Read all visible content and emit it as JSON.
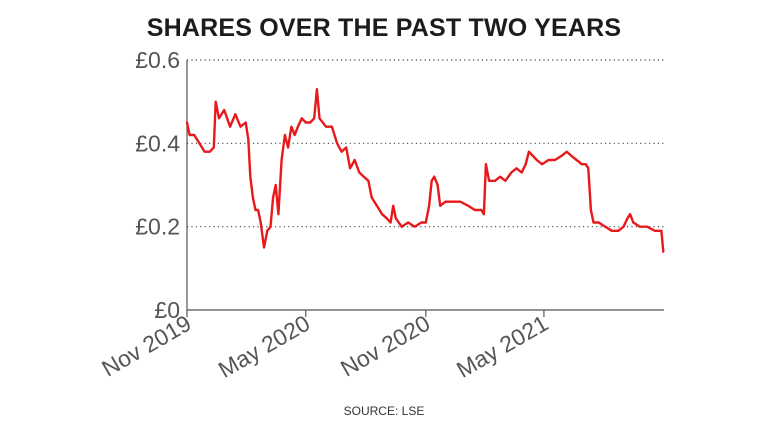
{
  "chart_data": {
    "type": "line",
    "title": "SHARES OVER THE PAST TWO YEARS",
    "source": "SOURCE: LSE",
    "currency_prefix": "£",
    "xlabel": "",
    "ylabel": "",
    "ylim": [
      0,
      0.6
    ],
    "yticks": [
      {
        "value": 0.6,
        "label": "£0.6"
      },
      {
        "value": 0.4,
        "label": "£0.4"
      },
      {
        "value": 0.2,
        "label": "£0.2"
      },
      {
        "value": 0,
        "label": "£0"
      }
    ],
    "xlim": [
      "2019-11-01",
      "2021-11-01"
    ],
    "xticks": [
      {
        "date": "2019-11-01",
        "label": "Nov 2019"
      },
      {
        "date": "2020-05-01",
        "label": "May 2020"
      },
      {
        "date": "2020-11-01",
        "label": "Nov 2020"
      },
      {
        "date": "2021-05-01",
        "label": "May 2021"
      }
    ],
    "grid": {
      "horizontal": true,
      "style": "dotted"
    },
    "line_color": "#e8191b",
    "series": [
      {
        "name": "",
        "points": [
          [
            "2019-11-01",
            0.45
          ],
          [
            "2019-11-05",
            0.42
          ],
          [
            "2019-11-12",
            0.42
          ],
          [
            "2019-11-20",
            0.4
          ],
          [
            "2019-11-28",
            0.38
          ],
          [
            "2019-12-06",
            0.38
          ],
          [
            "2019-12-12",
            0.39
          ],
          [
            "2019-12-15",
            0.5
          ],
          [
            "2019-12-20",
            0.46
          ],
          [
            "2019-12-28",
            0.48
          ],
          [
            "2020-01-06",
            0.44
          ],
          [
            "2020-01-14",
            0.47
          ],
          [
            "2020-01-22",
            0.44
          ],
          [
            "2020-01-30",
            0.45
          ],
          [
            "2020-02-03",
            0.41
          ],
          [
            "2020-02-06",
            0.32
          ],
          [
            "2020-02-10",
            0.27
          ],
          [
            "2020-02-14",
            0.24
          ],
          [
            "2020-02-18",
            0.24
          ],
          [
            "2020-02-22",
            0.21
          ],
          [
            "2020-02-27",
            0.15
          ],
          [
            "2020-03-03",
            0.19
          ],
          [
            "2020-03-08",
            0.2
          ],
          [
            "2020-03-12",
            0.27
          ],
          [
            "2020-03-16",
            0.3
          ],
          [
            "2020-03-20",
            0.23
          ],
          [
            "2020-03-25",
            0.36
          ],
          [
            "2020-03-30",
            0.42
          ],
          [
            "2020-04-04",
            0.39
          ],
          [
            "2020-04-09",
            0.44
          ],
          [
            "2020-04-14",
            0.42
          ],
          [
            "2020-04-19",
            0.44
          ],
          [
            "2020-04-25",
            0.46
          ],
          [
            "2020-05-01",
            0.45
          ],
          [
            "2020-05-08",
            0.45
          ],
          [
            "2020-05-14",
            0.46
          ],
          [
            "2020-05-18",
            0.53
          ],
          [
            "2020-05-22",
            0.46
          ],
          [
            "2020-06-01",
            0.44
          ],
          [
            "2020-06-10",
            0.44
          ],
          [
            "2020-06-18",
            0.4
          ],
          [
            "2020-06-25",
            0.38
          ],
          [
            "2020-07-02",
            0.39
          ],
          [
            "2020-07-08",
            0.34
          ],
          [
            "2020-07-15",
            0.36
          ],
          [
            "2020-07-22",
            0.33
          ],
          [
            "2020-07-29",
            0.32
          ],
          [
            "2020-08-05",
            0.31
          ],
          [
            "2020-08-10",
            0.27
          ],
          [
            "2020-08-18",
            0.25
          ],
          [
            "2020-08-26",
            0.23
          ],
          [
            "2020-09-02",
            0.22
          ],
          [
            "2020-09-08",
            0.21
          ],
          [
            "2020-09-12",
            0.25
          ],
          [
            "2020-09-16",
            0.22
          ],
          [
            "2020-09-25",
            0.2
          ],
          [
            "2020-10-05",
            0.21
          ],
          [
            "2020-10-15",
            0.2
          ],
          [
            "2020-10-25",
            0.21
          ],
          [
            "2020-11-01",
            0.21
          ],
          [
            "2020-11-06",
            0.25
          ],
          [
            "2020-11-10",
            0.31
          ],
          [
            "2020-11-14",
            0.32
          ],
          [
            "2020-11-19",
            0.3
          ],
          [
            "2020-11-23",
            0.25
          ],
          [
            "2020-12-01",
            0.26
          ],
          [
            "2020-12-12",
            0.26
          ],
          [
            "2020-12-24",
            0.26
          ],
          [
            "2021-01-05",
            0.25
          ],
          [
            "2021-01-15",
            0.24
          ],
          [
            "2021-01-25",
            0.24
          ],
          [
            "2021-01-29",
            0.23
          ],
          [
            "2021-02-01",
            0.35
          ],
          [
            "2021-02-06",
            0.31
          ],
          [
            "2021-02-15",
            0.31
          ],
          [
            "2021-02-23",
            0.32
          ],
          [
            "2021-03-03",
            0.31
          ],
          [
            "2021-03-12",
            0.33
          ],
          [
            "2021-03-20",
            0.34
          ],
          [
            "2021-03-28",
            0.33
          ],
          [
            "2021-04-03",
            0.35
          ],
          [
            "2021-04-08",
            0.38
          ],
          [
            "2021-04-14",
            0.37
          ],
          [
            "2021-04-20",
            0.36
          ],
          [
            "2021-04-28",
            0.35
          ],
          [
            "2021-05-08",
            0.36
          ],
          [
            "2021-05-18",
            0.36
          ],
          [
            "2021-05-28",
            0.37
          ],
          [
            "2021-06-05",
            0.38
          ],
          [
            "2021-06-12",
            0.37
          ],
          [
            "2021-06-20",
            0.36
          ],
          [
            "2021-06-28",
            0.35
          ],
          [
            "2021-07-04",
            0.35
          ],
          [
            "2021-07-08",
            0.34
          ],
          [
            "2021-07-12",
            0.24
          ],
          [
            "2021-07-16",
            0.21
          ],
          [
            "2021-07-24",
            0.21
          ],
          [
            "2021-08-03",
            0.2
          ],
          [
            "2021-08-13",
            0.19
          ],
          [
            "2021-08-23",
            0.19
          ],
          [
            "2021-08-31",
            0.2
          ],
          [
            "2021-09-06",
            0.22
          ],
          [
            "2021-09-10",
            0.23
          ],
          [
            "2021-09-15",
            0.21
          ],
          [
            "2021-09-25",
            0.2
          ],
          [
            "2021-10-06",
            0.2
          ],
          [
            "2021-10-18",
            0.19
          ],
          [
            "2021-10-28",
            0.19
          ],
          [
            "2021-10-31",
            0.14
          ]
        ]
      }
    ]
  }
}
